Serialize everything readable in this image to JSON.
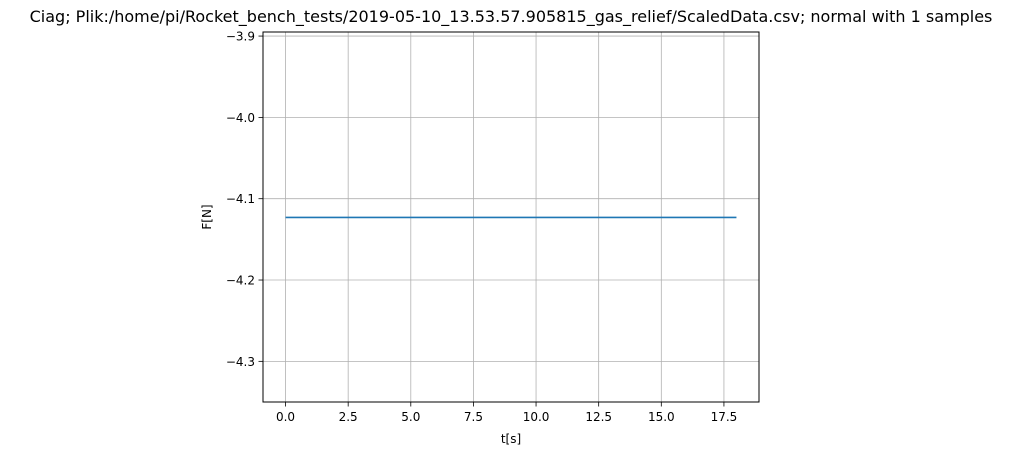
{
  "chart_data": {
    "type": "line",
    "title": "Ciag; Plik:/home/pi/Rocket_bench_tests/2019-05-10_13.53.57.905815_gas_relief/ScaledData.csv; normal with 1 samples",
    "xlabel": "t[s]",
    "ylabel": "F[N]",
    "xlim": [
      -0.9,
      18.9
    ],
    "ylim": [
      -4.35,
      -3.895
    ],
    "grid": true,
    "x_ticks": [
      0.0,
      2.5,
      5.0,
      7.5,
      10.0,
      12.5,
      15.0,
      17.5
    ],
    "x_tick_labels": [
      "0.0",
      "2.5",
      "5.0",
      "7.5",
      "10.0",
      "12.5",
      "15.0",
      "17.5"
    ],
    "y_ticks": [
      -3.9,
      -4.0,
      -4.1,
      -4.2,
      -4.3
    ],
    "y_tick_labels": [
      "−3.9",
      "−4.0",
      "−4.1",
      "−4.2",
      "−4.3"
    ],
    "series": [
      {
        "color": "#1f77b4",
        "x": [
          0.0,
          18.0
        ],
        "y": [
          -4.123,
          -4.123
        ]
      }
    ]
  }
}
